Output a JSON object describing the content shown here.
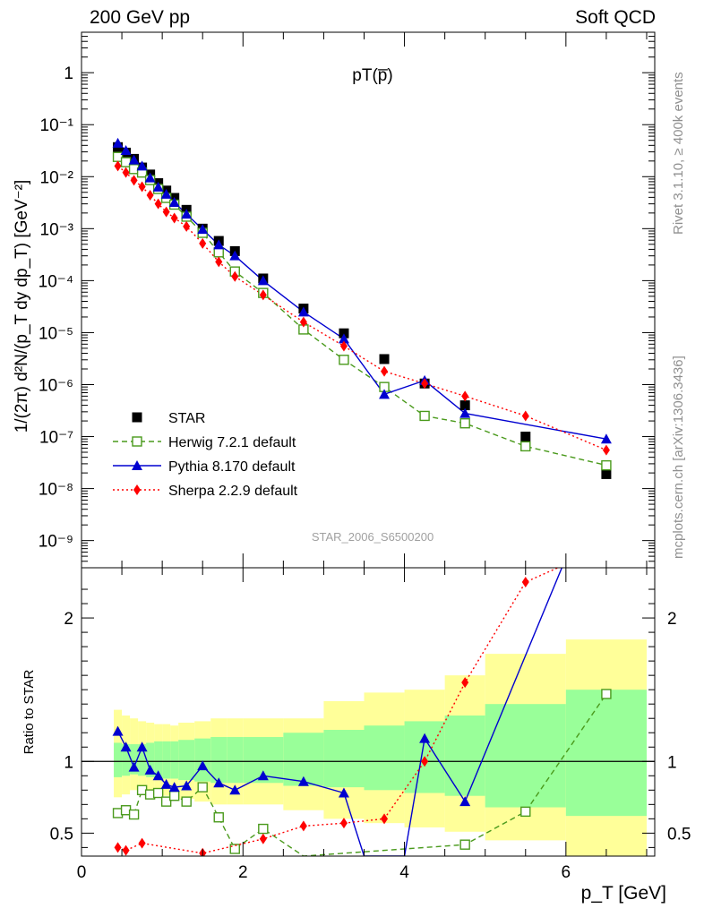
{
  "header": {
    "left": "200 GeV pp",
    "right": "Soft QCD"
  },
  "side_labels": {
    "upper": "Rivet 3.1.10, ≥ 400k events",
    "lower": "mcplots.cern.ch [arXiv:1306.3436]"
  },
  "analysis_id": "STAR_2006_S6500200",
  "colors": {
    "star": "#000000",
    "herwig": "#4a9a1c",
    "pythia": "#0000d0",
    "sherpa": "#ff0000",
    "band_green": "#99ff99",
    "band_yellow": "#ffff99"
  },
  "chart_data": [
    {
      "type": "scatter",
      "title": "pT(p̅)",
      "ylabel": "1/(2π) d²N/(p_T dy dp_T) [GeV⁻²]",
      "xlabel": "",
      "yscale": "log",
      "xlim": [
        0,
        7.1
      ],
      "ylim": [
        3e-10,
        6
      ],
      "ytick_labels": [
        "10⁻⁹",
        "10⁻⁸",
        "10⁻⁷",
        "10⁻⁶",
        "10⁻⁵",
        "10⁻⁴",
        "10⁻³",
        "10⁻²",
        "10⁻¹",
        "1"
      ],
      "legend_position": "lower-left",
      "series": [
        {
          "name": "STAR",
          "style": "square-filled",
          "x": [
            0.45,
            0.55,
            0.65,
            0.75,
            0.85,
            0.95,
            1.05,
            1.15,
            1.3,
            1.5,
            1.7,
            1.9,
            2.25,
            2.75,
            3.25,
            3.75,
            4.25,
            4.75,
            5.5,
            6.5
          ],
          "y": [
            0.037,
            0.029,
            0.022,
            0.015,
            0.011,
            0.0075,
            0.0054,
            0.0039,
            0.0023,
            0.001,
            0.00058,
            0.00037,
            0.00011,
            2.9e-05,
            9.7e-06,
            3.1e-06,
            1.05e-06,
            4e-07,
            1e-07,
            1.9e-08
          ]
        },
        {
          "name": "Herwig 7.2.1 default",
          "style": "square-open-dashed",
          "x": [
            0.45,
            0.55,
            0.65,
            0.75,
            0.85,
            0.95,
            1.05,
            1.15,
            1.3,
            1.5,
            1.7,
            1.9,
            2.25,
            2.75,
            3.25,
            3.75,
            4.25,
            4.75,
            5.5,
            6.5
          ],
          "y": [
            0.024,
            0.019,
            0.014,
            0.012,
            0.0086,
            0.0058,
            0.0039,
            0.0029,
            0.0017,
            0.00083,
            0.00035,
            0.00015,
            5.8e-05,
            1.15e-05,
            3e-06,
            9e-07,
            2.5e-07,
            1.8e-07,
            6.5e-08,
            2.8e-08
          ]
        },
        {
          "name": "Pythia 8.170 default",
          "style": "triangle-filled-solid",
          "x": [
            0.45,
            0.55,
            0.65,
            0.75,
            0.85,
            0.95,
            1.05,
            1.15,
            1.3,
            1.5,
            1.7,
            1.9,
            2.25,
            2.75,
            3.25,
            3.75,
            4.25,
            4.75,
            6.5
          ],
          "y": [
            0.044,
            0.032,
            0.021,
            0.016,
            0.0095,
            0.0063,
            0.0046,
            0.0032,
            0.0019,
            0.00097,
            0.00049,
            0.0003,
            0.0001,
            2.5e-05,
            7.6e-06,
            6.5e-07,
            1.2e-06,
            2.8e-07,
            9e-08
          ]
        },
        {
          "name": "Sherpa 2.2.9 default",
          "style": "diamond-filled-dotted",
          "x": [
            0.45,
            0.55,
            0.65,
            0.75,
            0.85,
            0.95,
            1.05,
            1.15,
            1.3,
            1.5,
            1.7,
            1.9,
            2.25,
            2.75,
            3.25,
            3.75,
            4.25,
            4.75,
            5.5,
            6.5
          ],
          "y": [
            0.016,
            0.012,
            0.0085,
            0.0064,
            0.0044,
            0.003,
            0.0021,
            0.0016,
            0.0011,
            0.00052,
            0.00023,
            0.00012,
            5.3e-05,
            1.6e-05,
            5.5e-06,
            1.8e-06,
            1.05e-06,
            6e-07,
            2.5e-07,
            5.5e-08
          ]
        }
      ]
    },
    {
      "type": "line",
      "ylabel": "Ratio to STAR",
      "xlabel": "p_T [GeV]",
      "xlim": [
        0,
        7.1
      ],
      "ylim": [
        0.34,
        2.35
      ],
      "xtick_labels": [
        "0",
        "2",
        "4",
        "6"
      ],
      "ytick_labels": [
        "0.5",
        "1",
        "2"
      ],
      "reference": 1,
      "bands": {
        "x_edges": [
          0.4,
          0.5,
          0.6,
          0.7,
          0.8,
          0.9,
          1.0,
          1.1,
          1.2,
          1.4,
          1.6,
          1.8,
          2.0,
          2.5,
          3.0,
          3.5,
          4.0,
          4.5,
          5.0,
          6.0,
          7.0
        ],
        "green_lo": [
          0.89,
          0.9,
          0.91,
          0.9,
          0.89,
          0.88,
          0.88,
          0.88,
          0.87,
          0.86,
          0.85,
          0.85,
          0.85,
          0.83,
          0.82,
          0.8,
          0.78,
          0.76,
          0.68,
          0.62
        ],
        "green_hi": [
          1.13,
          1.12,
          1.12,
          1.12,
          1.13,
          1.14,
          1.14,
          1.14,
          1.15,
          1.16,
          1.17,
          1.17,
          1.17,
          1.2,
          1.22,
          1.25,
          1.28,
          1.32,
          1.4,
          1.5
        ],
        "yellow_lo": [
          0.75,
          0.77,
          0.8,
          0.8,
          0.8,
          0.78,
          0.76,
          0.76,
          0.74,
          0.72,
          0.7,
          0.7,
          0.7,
          0.66,
          0.6,
          0.57,
          0.54,
          0.51,
          0.45,
          0.34
        ],
        "yellow_hi": [
          1.36,
          1.32,
          1.3,
          1.28,
          1.27,
          1.26,
          1.26,
          1.25,
          1.27,
          1.28,
          1.3,
          1.3,
          1.3,
          1.3,
          1.42,
          1.48,
          1.5,
          1.6,
          1.75,
          1.85
        ]
      },
      "series": [
        {
          "name": "Herwig 7.2.1 default",
          "x": [
            0.45,
            0.55,
            0.65,
            0.75,
            0.85,
            0.95,
            1.05,
            1.15,
            1.3,
            1.5,
            1.7,
            1.9,
            2.25,
            2.75,
            4.75,
            5.5,
            6.5
          ],
          "y": [
            0.64,
            0.66,
            0.63,
            0.8,
            0.77,
            0.78,
            0.72,
            0.76,
            0.72,
            0.82,
            0.61,
            0.39,
            0.53,
            0.34,
            0.42,
            0.65,
            1.47
          ]
        },
        {
          "name": "Pythia 8.170 default",
          "x": [
            0.45,
            0.55,
            0.65,
            0.75,
            0.85,
            0.95,
            1.05,
            1.15,
            1.3,
            1.5,
            1.7,
            1.9,
            2.25,
            2.75,
            3.25,
            3.5,
            4.0,
            4.25,
            4.75,
            5.95
          ],
          "y": [
            1.21,
            1.1,
            0.96,
            1.1,
            0.94,
            0.9,
            0.84,
            0.82,
            0.83,
            0.97,
            0.85,
            0.8,
            0.9,
            0.86,
            0.78,
            0.34,
            0.34,
            1.16,
            0.72,
            2.35
          ]
        },
        {
          "name": "Sherpa 2.2.9 default",
          "x": [
            0.45,
            0.55,
            0.75,
            1.5,
            2.25,
            2.75,
            3.25,
            3.75,
            4.25,
            4.75,
            5.5,
            5.9
          ],
          "y": [
            0.4,
            0.38,
            0.43,
            0.36,
            0.46,
            0.55,
            0.57,
            0.6,
            1.0,
            1.55,
            2.25,
            2.35
          ]
        }
      ]
    }
  ]
}
